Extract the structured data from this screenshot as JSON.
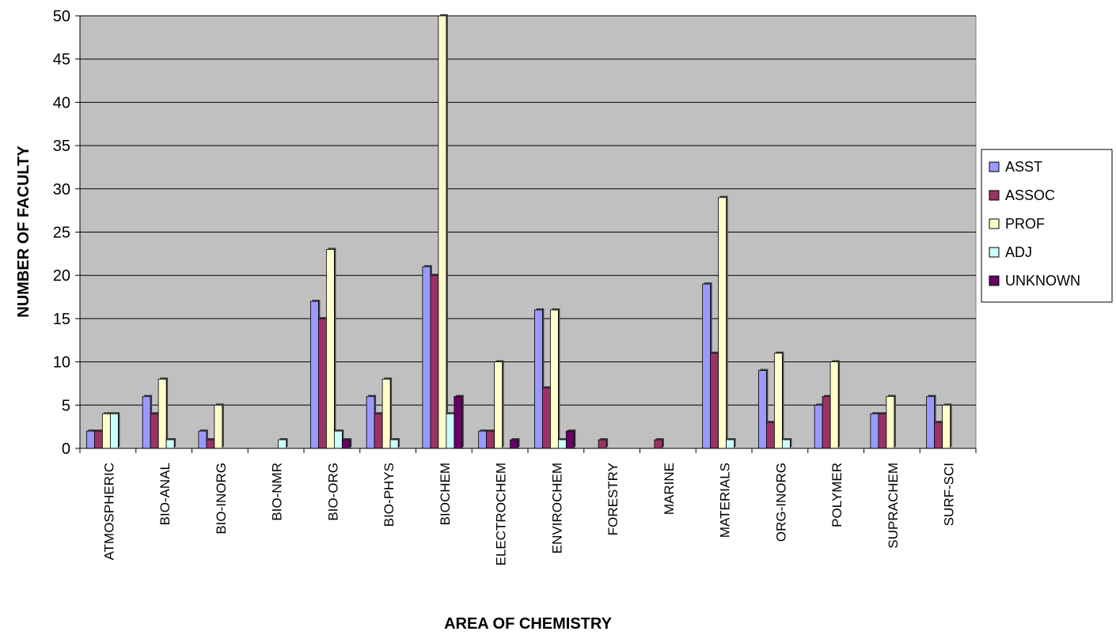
{
  "chart_data": {
    "type": "bar",
    "title": "",
    "xlabel": "AREA OF CHEMISTRY",
    "ylabel": "NUMBER OF FACULTY",
    "ylim": [
      0,
      50
    ],
    "yticks": [
      0,
      5,
      10,
      15,
      20,
      25,
      30,
      35,
      40,
      45,
      50
    ],
    "grid": true,
    "legend_position": "right",
    "plot_background": "#c0c0c0",
    "categories": [
      "ATMOSPHERIC",
      "BIO-ANAL",
      "BIO-INORG",
      "BIO-NMR",
      "BIO-ORG",
      "BIO-PHYS",
      "BIOCHEM",
      "ELECTROCHEM",
      "ENVIROCHEM",
      "FORESTRY",
      "MARINE",
      "MATERIALS",
      "ORG-INORG",
      "POLYMER",
      "SUPRACHEM",
      "SURF-SCI"
    ],
    "series": [
      {
        "name": "ASST",
        "color": "#9999ff",
        "values": [
          2,
          6,
          2,
          0,
          17,
          6,
          21,
          2,
          16,
          0,
          0,
          19,
          9,
          5,
          4,
          6
        ]
      },
      {
        "name": "ASSOC",
        "color": "#993366",
        "values": [
          2,
          4,
          1,
          0,
          15,
          4,
          20,
          2,
          7,
          1,
          1,
          11,
          3,
          6,
          4,
          3
        ]
      },
      {
        "name": "PROF",
        "color": "#ffffcc",
        "values": [
          4,
          8,
          5,
          0,
          23,
          8,
          50,
          10,
          16,
          0,
          0,
          29,
          11,
          10,
          6,
          5
        ]
      },
      {
        "name": "ADJ",
        "color": "#ccffff",
        "values": [
          4,
          1,
          0,
          1,
          2,
          1,
          4,
          0,
          1,
          0,
          0,
          1,
          1,
          0,
          0,
          0
        ]
      },
      {
        "name": "UNKNOWN",
        "color": "#660066",
        "values": [
          0,
          0,
          0,
          0,
          1,
          0,
          6,
          1,
          2,
          0,
          0,
          0,
          0,
          0,
          0,
          0
        ]
      }
    ]
  }
}
